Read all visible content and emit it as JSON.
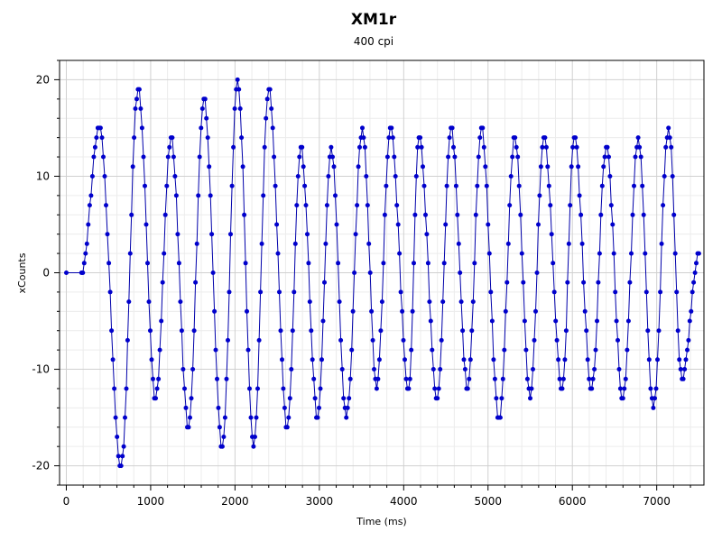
{
  "chart_data": {
    "type": "line",
    "title": "XM1r",
    "subtitle": "400 cpi",
    "xlabel": "Time (ms)",
    "ylabel": "xCounts",
    "xlim": [
      -80,
      7560
    ],
    "ylim": [
      -22,
      22
    ],
    "x_ticks": [
      0,
      1000,
      2000,
      3000,
      4000,
      5000,
      6000,
      7000
    ],
    "y_ticks": [
      -20,
      -10,
      0,
      10,
      20
    ],
    "grid": true,
    "legend": "none",
    "series_color": "#0000cc",
    "line_color": "#0000aa",
    "series": [
      {
        "sample_interval_ms": 16,
        "start": [
          [
            0,
            0
          ],
          [
            180,
            0
          ]
        ],
        "peaks": [
          [
            390,
            15
          ],
          [
            850,
            19
          ],
          [
            1240,
            14
          ],
          [
            1630,
            18
          ],
          [
            2030,
            20
          ],
          [
            2400,
            19
          ],
          [
            2780,
            13
          ],
          [
            3140,
            13
          ],
          [
            3510,
            15
          ],
          [
            3840,
            15
          ],
          [
            4180,
            14
          ],
          [
            4560,
            15
          ],
          [
            4920,
            15
          ],
          [
            5320,
            14
          ],
          [
            5660,
            14
          ],
          [
            6020,
            14
          ],
          [
            6400,
            13
          ],
          [
            6780,
            14
          ],
          [
            7140,
            15
          ]
        ],
        "troughs": [
          [
            650,
            -20
          ],
          [
            1060,
            -13
          ],
          [
            1450,
            -16
          ],
          [
            1850,
            -18
          ],
          [
            2220,
            -18
          ],
          [
            2620,
            -16
          ],
          [
            2980,
            -15
          ],
          [
            3320,
            -15
          ],
          [
            3680,
            -12
          ],
          [
            4060,
            -12
          ],
          [
            4400,
            -13
          ],
          [
            4760,
            -12
          ],
          [
            5130,
            -15
          ],
          [
            5500,
            -13
          ],
          [
            5880,
            -12
          ],
          [
            6230,
            -12
          ],
          [
            6600,
            -13
          ],
          [
            6960,
            -14
          ],
          [
            7300,
            -11
          ]
        ],
        "end": [
          7500,
          2
        ]
      }
    ]
  }
}
